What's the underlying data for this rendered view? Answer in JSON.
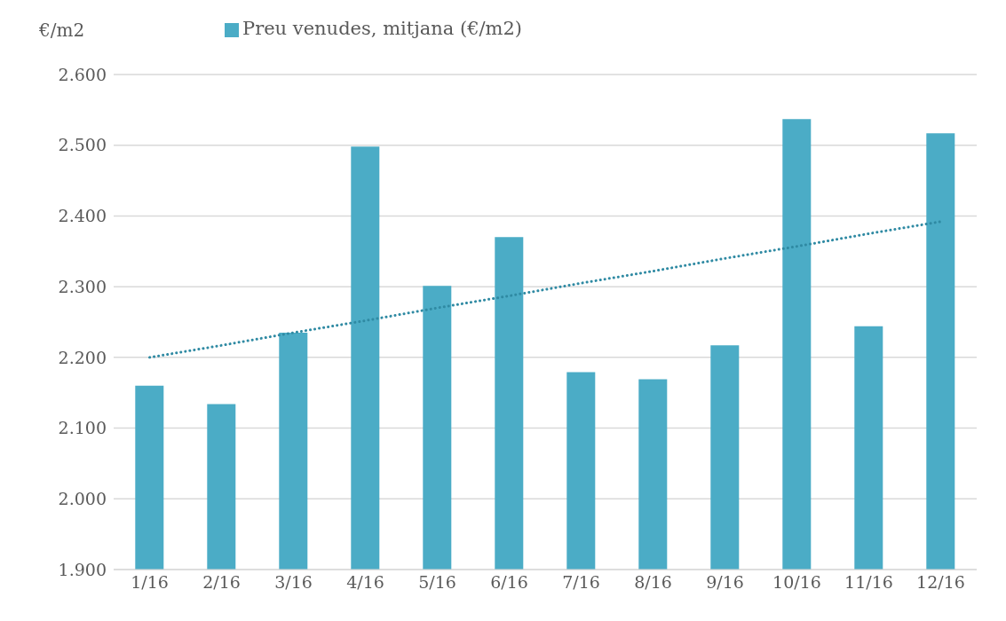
{
  "chart_data": {
    "type": "bar",
    "ylabel": "€/m2",
    "categories": [
      "1/16",
      "2/16",
      "3/16",
      "4/16",
      "5/16",
      "6/16",
      "7/16",
      "8/16",
      "9/16",
      "10/16",
      "11/16",
      "12/16"
    ],
    "series": [
      {
        "name": "Preu venudes, mitjana (€/m2)",
        "color": "#4bacc6",
        "values": [
          2160,
          2134,
          2235,
          2498,
          2301,
          2370,
          2179,
          2169,
          2217,
          2537,
          2244,
          2517
        ]
      },
      {
        "type": "line",
        "color": "#2f8aa3",
        "line_style": "dotted",
        "marker": "none",
        "values": [
          2200,
          2217,
          2235,
          2252,
          2270,
          2287,
          2305,
          2322,
          2340,
          2357,
          2375,
          2392
        ]
      }
    ],
    "ylim": [
      1900,
      2600
    ],
    "yticks": [
      {
        "value": 1900,
        "label": "1.900"
      },
      {
        "value": 2000,
        "label": "2.000"
      },
      {
        "value": 2100,
        "label": "2.100"
      },
      {
        "value": 2200,
        "label": "2.200"
      },
      {
        "value": 2300,
        "label": "2.300"
      },
      {
        "value": 2400,
        "label": "2.400"
      },
      {
        "value": 2500,
        "label": "2.500"
      },
      {
        "value": 2600,
        "label": "2.600"
      }
    ],
    "grid": "y",
    "legend": "top"
  }
}
